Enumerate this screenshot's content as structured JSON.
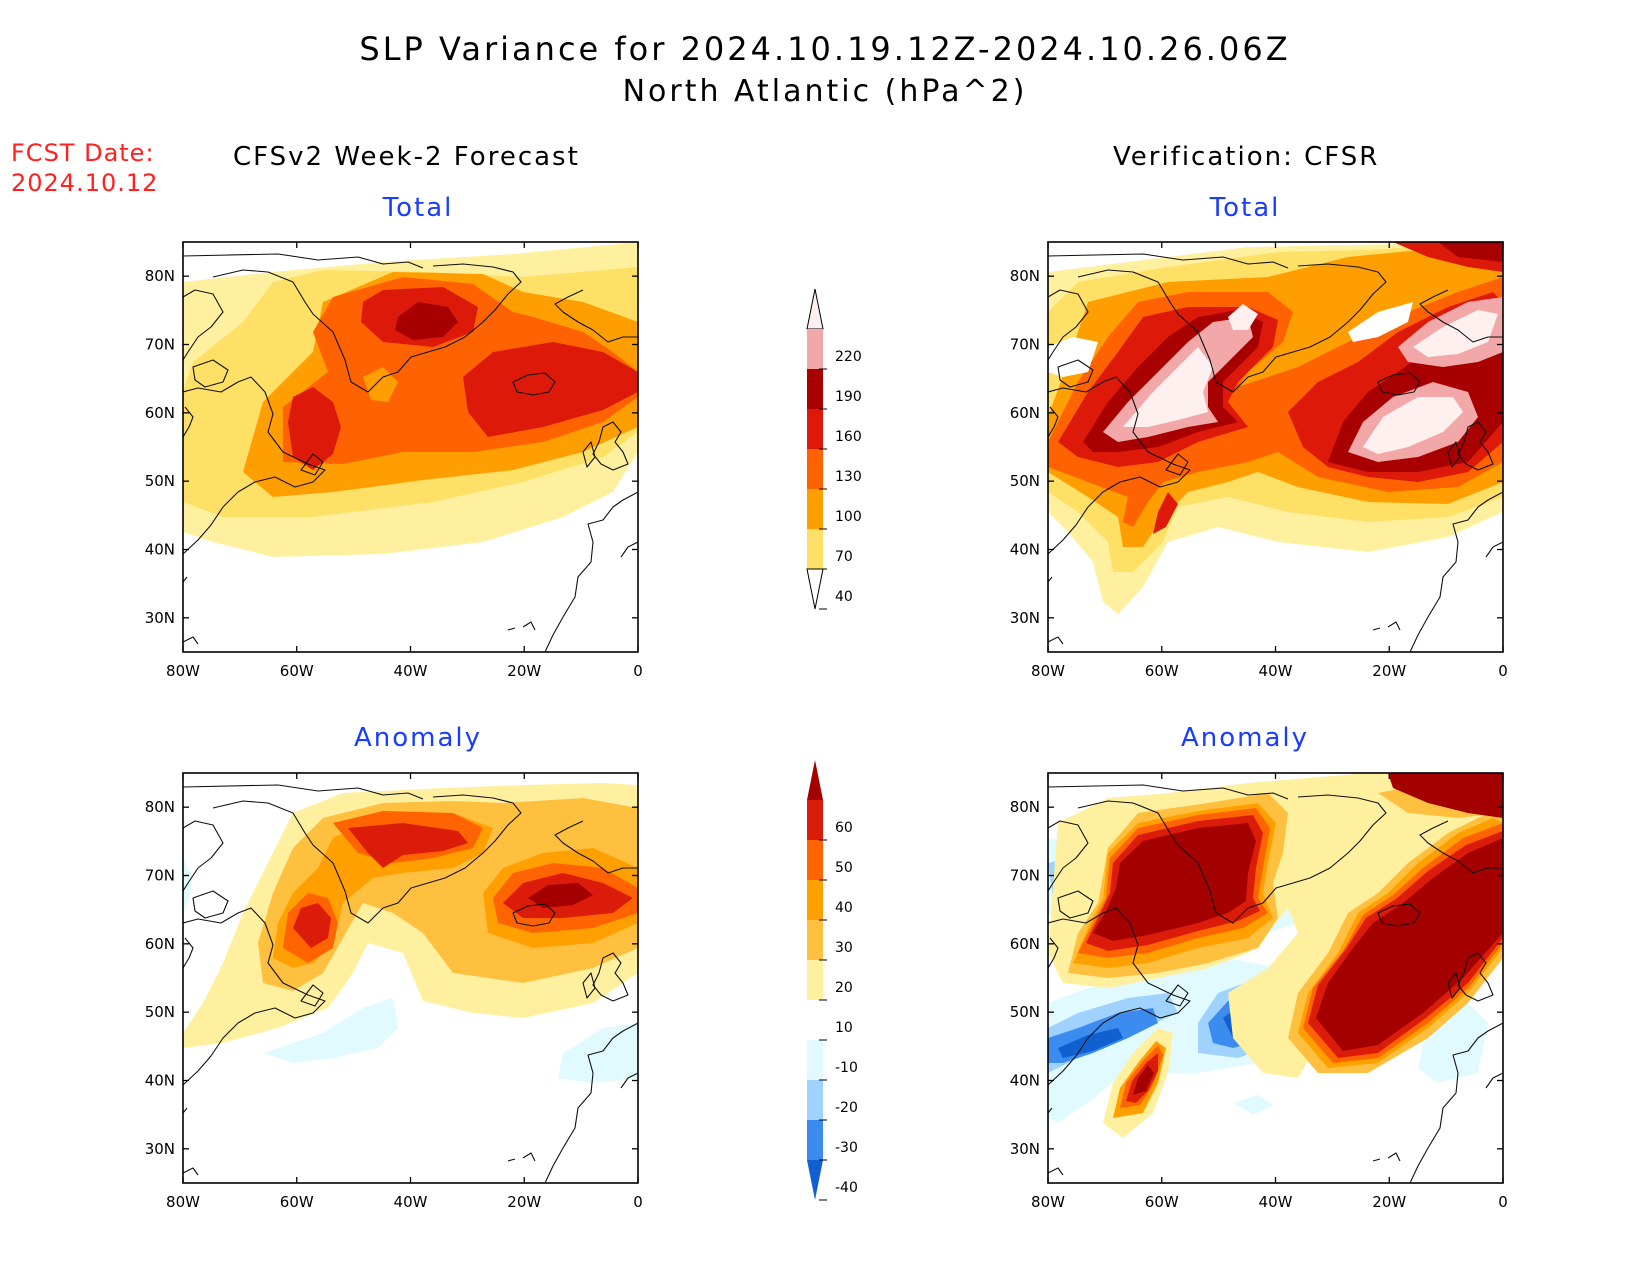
{
  "title": "SLP Variance for 2024.10.19.12Z-2024.10.26.06Z",
  "subtitle": "North Atlantic (hPa^2)",
  "fcst_date_label": "FCST Date:",
  "fcst_date_value": "2024.10.12",
  "columns": {
    "left": "CFSv2 Week-2 Forecast",
    "right": "Verification: CFSR"
  },
  "panels": [
    {
      "id": "fcst-total",
      "title": "Total"
    },
    {
      "id": "verif-total",
      "title": "Total"
    },
    {
      "id": "fcst-anom",
      "title": "Anomaly"
    },
    {
      "id": "verif-anom",
      "title": "Anomaly"
    }
  ],
  "axes": {
    "lon_labels": [
      "80W",
      "60W",
      "40W",
      "20W",
      "0"
    ],
    "lat_labels": [
      "80N",
      "70N",
      "60N",
      "50N",
      "40N",
      "30N"
    ],
    "lon_range": [
      -80,
      0
    ],
    "lat_range": [
      25,
      85
    ]
  },
  "colorbar_total": {
    "levels": [
      "40",
      "70",
      "100",
      "130",
      "160",
      "190",
      "220"
    ],
    "colors": [
      "#fff0a0",
      "#ffe066",
      "#ff9e00",
      "#ff6200",
      "#dd1a0a",
      "#a80000",
      "#f2a8a8",
      "#fff0f0"
    ]
  },
  "colorbar_anomaly": {
    "levels": [
      "60",
      "50",
      "40",
      "30",
      "20",
      "10",
      "-10",
      "-20",
      "-30",
      "-40"
    ],
    "colors": [
      "#a50000",
      "#dc1c0a",
      "#ff6400",
      "#ffa000",
      "#ffc040",
      "#fff0a0",
      "#ffffff",
      "#e0faff",
      "#a0d2ff",
      "#3c8cf0",
      "#1060d0"
    ]
  },
  "contour_colors": {
    "t40": "#fff0a0",
    "t70": "#ffe066",
    "t100": "#ff9e00",
    "t130": "#ff6200",
    "t160": "#dd1a0a",
    "t190": "#a80000",
    "t220": "#f2a8a8",
    "tmax": "#fff0f0",
    "a10": "#fff0a0",
    "a20": "#ffc040",
    "a30": "#ffa000",
    "a40": "#ff6400",
    "a50": "#dc1c0a",
    "a60": "#a50000",
    "n10": "#e0faff",
    "n20": "#a0d2ff",
    "n30": "#3c8cf0",
    "n40": "#1060d0"
  }
}
